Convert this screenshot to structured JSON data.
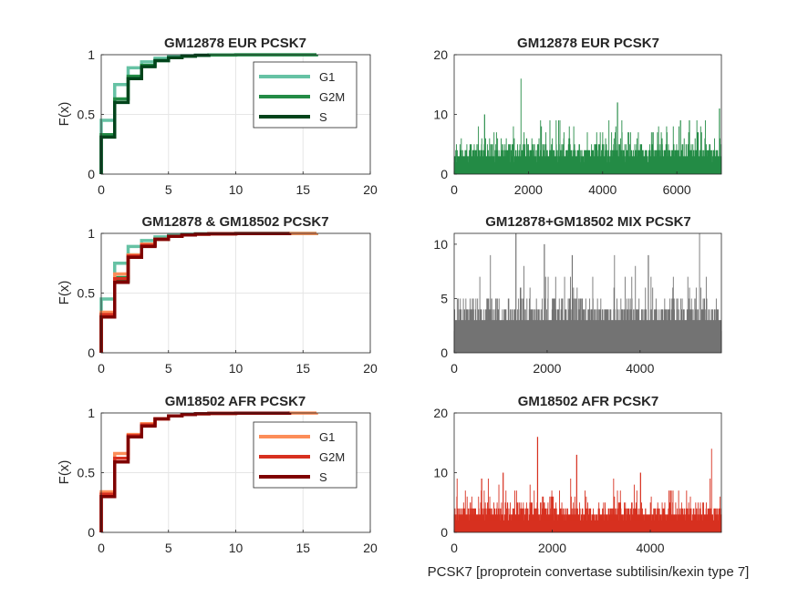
{
  "colors": {
    "grid": "#e6e6e6",
    "axis": "#262626",
    "green_g1": "#66c2a4",
    "green_g2m": "#238b45",
    "green_s": "#00441b",
    "red_g1": "#fc8d59",
    "red_g2m": "#d7301f",
    "red_s": "#7f0000",
    "mix": "#737373"
  },
  "figure": {
    "xlabel": "PCSK7 [proprotein convertase subtilisin/kexin type 7]"
  },
  "chart_data": [
    {
      "type": "line",
      "title": "GM12878 EUR PCSK7",
      "ylabel": "F(x)",
      "xlim": [
        0,
        20
      ],
      "ylim": [
        0,
        1
      ],
      "xticks": [
        "0",
        "5",
        "10",
        "15",
        "20"
      ],
      "yticks": [
        "0",
        "0.5",
        "1"
      ],
      "grid": true,
      "legend_position": "top-right",
      "legend": [
        "G1",
        "G2M",
        "S"
      ],
      "series": [
        {
          "name": "G1",
          "color": "#66c2a4",
          "x": [
            0,
            1,
            2,
            3,
            4,
            5,
            6,
            7,
            8,
            10,
            16
          ],
          "y": [
            0.45,
            0.75,
            0.89,
            0.94,
            0.97,
            0.985,
            0.992,
            0.996,
            0.998,
            0.999,
            1.0
          ]
        },
        {
          "name": "G2M",
          "color": "#238b45",
          "x": [
            0,
            1,
            2,
            3,
            4,
            5,
            6,
            7,
            8,
            10,
            16
          ],
          "y": [
            0.33,
            0.63,
            0.82,
            0.91,
            0.95,
            0.975,
            0.988,
            0.994,
            0.997,
            0.999,
            1.0
          ]
        },
        {
          "name": "S",
          "color": "#00441b",
          "x": [
            0,
            1,
            2,
            3,
            4,
            5,
            6,
            7,
            8
          ],
          "y": [
            0.31,
            0.6,
            0.8,
            0.9,
            0.95,
            0.975,
            0.988,
            0.995,
            1.0
          ]
        }
      ]
    },
    {
      "type": "bar",
      "title": "GM12878 EUR PCSK7",
      "xlim": [
        0,
        7200
      ],
      "ylim": [
        0,
        20
      ],
      "xticks": [
        "0",
        "2000",
        "4000",
        "6000"
      ],
      "yticks": [
        "0",
        "10",
        "20"
      ],
      "n_cells": 7200,
      "color": "#238b45",
      "peaks": [
        [
          820,
          10
        ],
        [
          1800,
          16
        ],
        [
          4400,
          12
        ],
        [
          7150,
          11
        ],
        [
          2850,
          9
        ],
        [
          6100,
          9
        ]
      ],
      "seed": 11
    },
    {
      "type": "line",
      "title": "GM12878 & GM18502 PCSK7",
      "ylabel": "F(x)",
      "xlim": [
        0,
        20
      ],
      "ylim": [
        0,
        1
      ],
      "xticks": [
        "0",
        "5",
        "10",
        "15",
        "20"
      ],
      "yticks": [
        "0",
        "0.5",
        "1"
      ],
      "grid": true,
      "series": [
        {
          "color": "#66c2a4",
          "x": [
            0,
            1,
            2,
            3,
            4,
            5,
            6,
            7,
            8,
            10,
            16
          ],
          "y": [
            0.45,
            0.75,
            0.89,
            0.94,
            0.97,
            0.985,
            0.992,
            0.996,
            0.998,
            0.999,
            1.0
          ]
        },
        {
          "color": "#238b45",
          "x": [
            0,
            1,
            2,
            3,
            4,
            5,
            6,
            7,
            8,
            10,
            16
          ],
          "y": [
            0.33,
            0.63,
            0.82,
            0.91,
            0.95,
            0.975,
            0.988,
            0.994,
            0.997,
            0.999,
            1.0
          ]
        },
        {
          "color": "#00441b",
          "x": [
            0,
            1,
            2,
            3,
            4,
            5,
            6,
            7,
            8
          ],
          "y": [
            0.31,
            0.6,
            0.8,
            0.9,
            0.95,
            0.975,
            0.988,
            0.995,
            1.0
          ]
        },
        {
          "color": "#fc8d59",
          "x": [
            0,
            1,
            2,
            3,
            4,
            5,
            6,
            7,
            8,
            10,
            14,
            16
          ],
          "y": [
            0.34,
            0.66,
            0.82,
            0.91,
            0.95,
            0.975,
            0.987,
            0.993,
            0.996,
            0.998,
            0.999,
            1.0
          ]
        },
        {
          "color": "#d7301f",
          "x": [
            0,
            1,
            2,
            3,
            4,
            5,
            6,
            7,
            8,
            10,
            14
          ],
          "y": [
            0.32,
            0.62,
            0.81,
            0.9,
            0.95,
            0.975,
            0.987,
            0.993,
            0.996,
            0.998,
            1.0
          ]
        },
        {
          "color": "#7f0000",
          "x": [
            0,
            1,
            2,
            3,
            4,
            5,
            6,
            7,
            8,
            10,
            14
          ],
          "y": [
            0.3,
            0.59,
            0.8,
            0.89,
            0.95,
            0.975,
            0.987,
            0.993,
            0.996,
            0.998,
            1.0
          ]
        }
      ]
    },
    {
      "type": "bar",
      "title": "GM12878+GM18502 MIX PCSK7",
      "xlim": [
        0,
        5750
      ],
      "ylim": [
        0,
        11
      ],
      "xticks": [
        "0",
        "2000",
        "4000"
      ],
      "yticks": [
        "0",
        "5",
        "10"
      ],
      "n_cells": 5750,
      "color": "#737373",
      "peaks": [
        [
          1330,
          11
        ],
        [
          5280,
          11
        ],
        [
          1940,
          10
        ],
        [
          3450,
          9
        ],
        [
          780,
          9
        ],
        [
          2540,
          9
        ],
        [
          4180,
          9
        ],
        [
          1500,
          8
        ],
        [
          3900,
          8
        ]
      ],
      "seed": 23
    },
    {
      "type": "line",
      "title": "GM18502 AFR PCSK7",
      "ylabel": "F(x)",
      "xlim": [
        0,
        20
      ],
      "ylim": [
        0,
        1
      ],
      "xticks": [
        "0",
        "5",
        "10",
        "15",
        "20"
      ],
      "yticks": [
        "0",
        "0.5",
        "1"
      ],
      "grid": true,
      "legend_position": "top-right",
      "legend": [
        "G1",
        "G2M",
        "S"
      ],
      "series": [
        {
          "name": "G1",
          "color": "#fc8d59",
          "x": [
            0,
            1,
            2,
            3,
            4,
            5,
            6,
            7,
            8,
            10,
            14,
            16
          ],
          "y": [
            0.34,
            0.66,
            0.82,
            0.91,
            0.95,
            0.975,
            0.987,
            0.993,
            0.996,
            0.998,
            0.999,
            1.0
          ]
        },
        {
          "name": "G2M",
          "color": "#d7301f",
          "x": [
            0,
            1,
            2,
            3,
            4,
            5,
            6,
            7,
            8,
            10,
            14
          ],
          "y": [
            0.32,
            0.62,
            0.81,
            0.9,
            0.95,
            0.975,
            0.987,
            0.993,
            0.996,
            0.998,
            1.0
          ]
        },
        {
          "name": "S",
          "color": "#7f0000",
          "x": [
            0,
            1,
            2,
            3,
            4,
            5,
            6,
            7,
            8,
            10,
            14
          ],
          "y": [
            0.3,
            0.59,
            0.8,
            0.89,
            0.95,
            0.975,
            0.987,
            0.993,
            0.996,
            0.998,
            1.0
          ]
        }
      ]
    },
    {
      "type": "bar",
      "title": "GM18502 AFR PCSK7",
      "xlim": [
        0,
        5450
      ],
      "ylim": [
        0,
        20
      ],
      "xticks": [
        "0",
        "2000",
        "4000"
      ],
      "yticks": [
        "0",
        "10",
        "20"
      ],
      "n_cells": 5450,
      "color": "#d7301f",
      "peaks": [
        [
          1700,
          16
        ],
        [
          5250,
          14
        ],
        [
          2500,
          13
        ],
        [
          560,
          9
        ],
        [
          1000,
          10
        ],
        [
          3800,
          10
        ]
      ],
      "seed": 37
    }
  ]
}
